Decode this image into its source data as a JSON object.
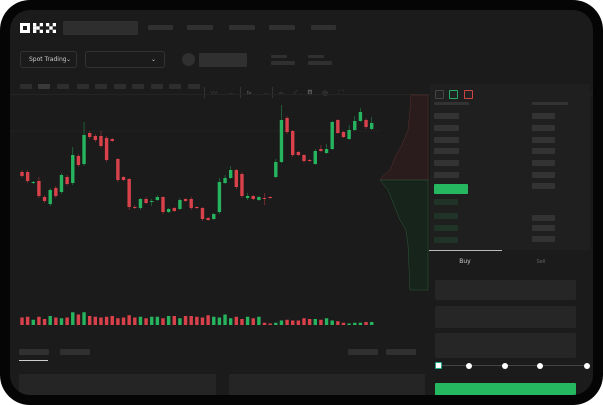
{
  "header": {
    "logo": "OKX",
    "nav_items": [
      "",
      "",
      "",
      "",
      ""
    ]
  },
  "toolbar": {
    "market_dropdown": "Spot Trading",
    "pair_dropdown": "",
    "chart_tool_icons": [
      "indicator-icon",
      "chevron-down-icon",
      "draw-icon",
      "chevron-down-icon",
      "line-icon",
      "ruler-icon",
      "camera-icon",
      "settings-icon",
      "fullscreen-icon"
    ]
  },
  "order_book": {
    "view_icons": [
      "book-both-icon",
      "book-bids-icon",
      "book-asks-icon"
    ]
  },
  "trade_panel": {
    "tabs": [
      {
        "label": "Buy",
        "active": true
      },
      {
        "label": "Sell",
        "active": false
      }
    ],
    "slider_value_percent": 0,
    "slider_steps": [
      0,
      25,
      50,
      75,
      100
    ]
  },
  "colors": {
    "up": "#26b55e",
    "down": "#d9424a",
    "accent": "#25b860",
    "background": "#1b1b1b"
  },
  "chart_data": {
    "type": "candlestick",
    "title": "",
    "grid": false,
    "columns": [
      "open",
      "high",
      "low",
      "close"
    ],
    "candles": [
      [
        118,
        120,
        112,
        114
      ],
      [
        118,
        120,
        107,
        109
      ],
      [
        107,
        109,
        106,
        108
      ],
      [
        109,
        113,
        92,
        94
      ],
      [
        93,
        95,
        87,
        89
      ],
      [
        86,
        102,
        84,
        100
      ],
      [
        102,
        104,
        92,
        94
      ],
      [
        98,
        117,
        96,
        115
      ],
      [
        113,
        115,
        104,
        106
      ],
      [
        107,
        143,
        105,
        135
      ],
      [
        134,
        136,
        123,
        125
      ],
      [
        126,
        168,
        124,
        155
      ],
      [
        157,
        159,
        151,
        153
      ],
      [
        154,
        156,
        148,
        150
      ],
      [
        154,
        159,
        142,
        144
      ],
      [
        152,
        154,
        128,
        130
      ],
      [
        151,
        152,
        148,
        149
      ],
      [
        131,
        132,
        108,
        110
      ],
      [
        113,
        114,
        109,
        110
      ],
      [
        111,
        112,
        80,
        83
      ],
      [
        83,
        85,
        81,
        82
      ],
      [
        82,
        92,
        80,
        91
      ],
      [
        91,
        93,
        86,
        87
      ],
      [
        88,
        91,
        84,
        89
      ],
      [
        90,
        95,
        89,
        93
      ],
      [
        93,
        94,
        76,
        78
      ],
      [
        78,
        82,
        77,
        81
      ],
      [
        82,
        83,
        78,
        79
      ],
      [
        81,
        92,
        80,
        90
      ],
      [
        91,
        92,
        88,
        89
      ],
      [
        91,
        93,
        80,
        82
      ],
      [
        83,
        84,
        81,
        82
      ],
      [
        82,
        83,
        69,
        71
      ],
      [
        72,
        73,
        69,
        70
      ],
      [
        71,
        77,
        70,
        76
      ],
      [
        78,
        112,
        76,
        108
      ],
      [
        107,
        115,
        106,
        112
      ],
      [
        112,
        124,
        111,
        120
      ],
      [
        120,
        121,
        101,
        103
      ],
      [
        116,
        118,
        92,
        94
      ],
      [
        92,
        97,
        90,
        94
      ],
      [
        94,
        95,
        90,
        91
      ],
      [
        90,
        94,
        89,
        93
      ],
      [
        92,
        97,
        85,
        91
      ],
      [
        93,
        94,
        91,
        92
      ],
      [
        113,
        131,
        112,
        128
      ],
      [
        128,
        185,
        127,
        170
      ],
      [
        172,
        174,
        156,
        158
      ],
      [
        159,
        160,
        133,
        135
      ],
      [
        138,
        139,
        134,
        135
      ],
      [
        135,
        136,
        127,
        129
      ],
      [
        130,
        131,
        128,
        129
      ],
      [
        126,
        141,
        125,
        139
      ],
      [
        141,
        145,
        138,
        139
      ],
      [
        137,
        146,
        136,
        141
      ],
      [
        141,
        169,
        140,
        168
      ],
      [
        170,
        171,
        156,
        157
      ],
      [
        158,
        159,
        152,
        153
      ],
      [
        151,
        165,
        150,
        160
      ],
      [
        160,
        174,
        159,
        169
      ],
      [
        169,
        182,
        168,
        178
      ],
      [
        170,
        172,
        161,
        163
      ],
      [
        161,
        173,
        160,
        167
      ]
    ],
    "volume": [
      10,
      11,
      7,
      11,
      8,
      12,
      10,
      9,
      10,
      17,
      14,
      17,
      12,
      11,
      10,
      11,
      12,
      9,
      10,
      13,
      10,
      11,
      9,
      11,
      11,
      9,
      12,
      12,
      9,
      12,
      12,
      11,
      10,
      13,
      11,
      10,
      14,
      9,
      11,
      8,
      11,
      9,
      11,
      3,
      2,
      3,
      6,
      7,
      6,
      6,
      9,
      8,
      8,
      7,
      9,
      6,
      5,
      3,
      2,
      3,
      3,
      4,
      4
    ]
  }
}
